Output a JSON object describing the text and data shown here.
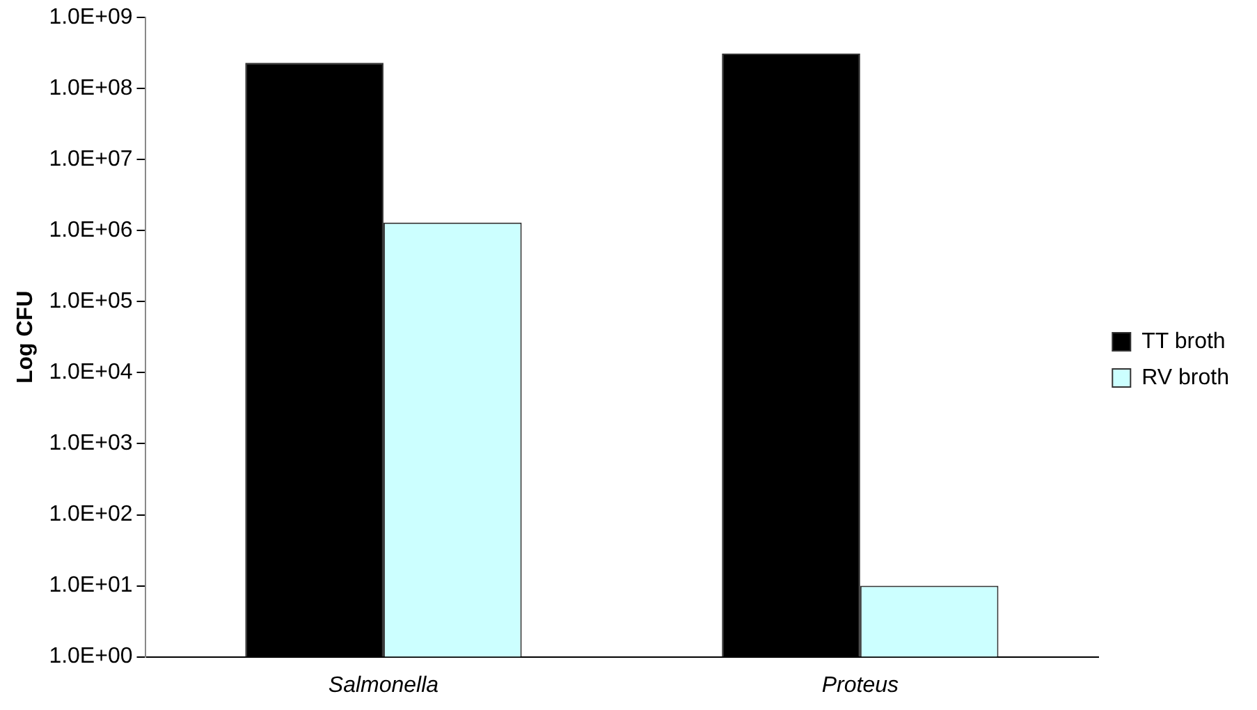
{
  "chart_data": {
    "type": "bar",
    "ylabel": "Log CFU",
    "categories": [
      "Salmonella",
      "Proteus"
    ],
    "series": [
      {
        "name": "TT broth",
        "color": "#000000",
        "values": [
          230000000,
          310000000
        ]
      },
      {
        "name": "RV broth",
        "color": "#ccffff",
        "values": [
          1300000,
          10
        ]
      }
    ],
    "log": "y",
    "ylim": [
      1,
      1000000000
    ],
    "yticks": [
      {
        "value": 1,
        "label": "1.0E+00"
      },
      {
        "value": 10,
        "label": "1.0E+01"
      },
      {
        "value": 100,
        "label": "1.0E+02"
      },
      {
        "value": 1000,
        "label": "1.0E+03"
      },
      {
        "value": 10000,
        "label": "1.0E+04"
      },
      {
        "value": 100000,
        "label": "1.0E+05"
      },
      {
        "value": 1000000,
        "label": "1.0E+06"
      },
      {
        "value": 10000000,
        "label": "1.0E+07"
      },
      {
        "value": 100000000,
        "label": "1.0E+08"
      },
      {
        "value": 1000000000,
        "label": "1.0E+09"
      }
    ],
    "grid": false,
    "legend": "right"
  }
}
